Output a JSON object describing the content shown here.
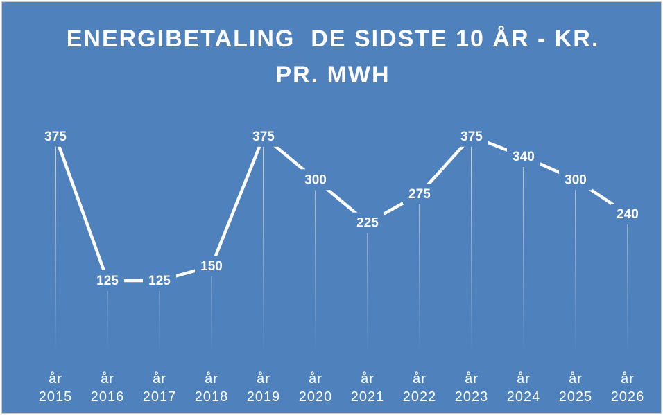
{
  "chart_data": {
    "type": "line",
    "title": "ENERGIBETALING  DE SIDSTE 10 ÅR - KR. PR. MWH",
    "categories": [
      "år 2015",
      "år 2016",
      "år 2017",
      "år 2018",
      "år 2019",
      "år 2020",
      "år 2021",
      "år 2022",
      "år 2023",
      "år 2024",
      "år 2025",
      "år 2026"
    ],
    "values": [
      375,
      125,
      125,
      150,
      375,
      300,
      225,
      275,
      375,
      340,
      300,
      240
    ],
    "color": "#ffffff",
    "background": "#4f81bd",
    "ylim": [
      0,
      400
    ],
    "data_labels": true,
    "drop_lines": true
  }
}
